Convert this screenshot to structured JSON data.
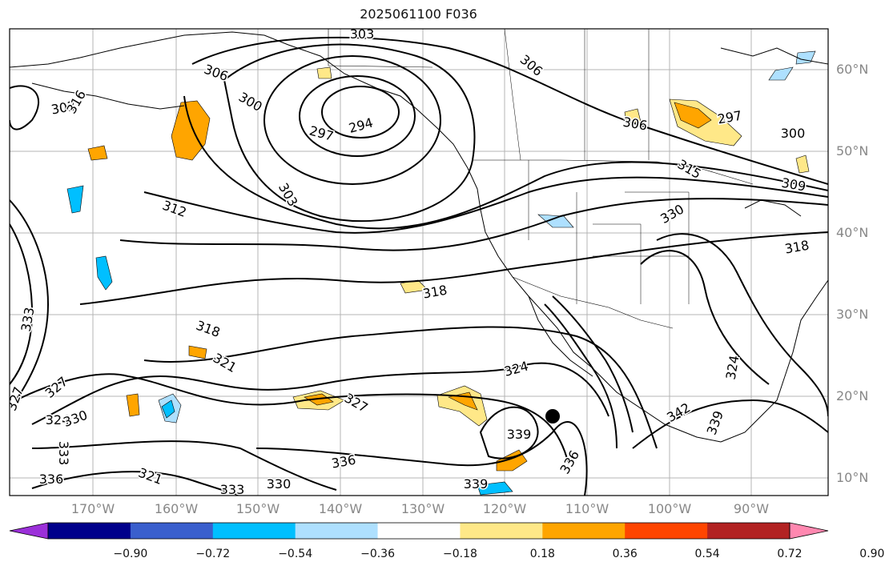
{
  "title": "2025061100 F036",
  "lat_labels": [
    "60°N",
    "50°N",
    "40°N",
    "30°N",
    "20°N",
    "10°N"
  ],
  "lon_labels": [
    "170°W",
    "160°W",
    "150°W",
    "140°W",
    "130°W",
    "120°W",
    "110°W",
    "100°W",
    "90°W"
  ],
  "contour_labels": [
    "303",
    "306",
    "300",
    "303",
    "297",
    "294",
    "303",
    "312",
    "316",
    "306",
    "297",
    "300",
    "315",
    "309",
    "330",
    "318",
    "318",
    "318",
    "321",
    "324",
    "327",
    "327",
    "324",
    "330",
    "327",
    "333",
    "336",
    "339",
    "336",
    "336",
    "342",
    "339",
    "333",
    "330",
    "321",
    "333",
    "339",
    "306",
    "324"
  ],
  "colorbar": {
    "tick_labels": [
      "−0.90",
      "−0.72",
      "−0.54",
      "−0.36",
      "−0.18",
      "0.18",
      "0.36",
      "0.54",
      "0.72",
      "0.90"
    ],
    "colors": [
      "#9b30d9",
      "#00008b",
      "#3a5fcd",
      "#00bfff",
      "#aee0ff",
      "#ffffff",
      "#ffe888",
      "#ffa500",
      "#ff4500",
      "#b22222",
      "#ff88b0"
    ]
  }
}
